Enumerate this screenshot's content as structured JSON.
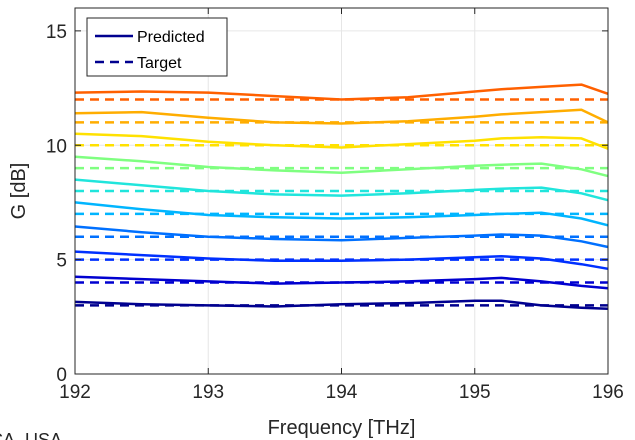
{
  "chart_data": {
    "type": "line",
    "xlabel": "Frequency  [THz]",
    "ylabel": "G  [dB]",
    "xlim": [
      192,
      196
    ],
    "ylim": [
      0,
      16
    ],
    "xticks": [
      192,
      193,
      194,
      195,
      196
    ],
    "yticks": [
      0,
      5,
      10,
      15
    ],
    "grid": true,
    "legend_position": "top-left",
    "legend": [
      {
        "label": "Predicted",
        "style": "solid"
      },
      {
        "label": "Target",
        "style": "dashed"
      }
    ],
    "x": [
      192,
      192.5,
      193,
      193.5,
      194,
      194.5,
      195,
      195.2,
      195.5,
      195.8,
      196
    ],
    "series": [
      {
        "target": 3,
        "predicted": [
          3.15,
          3.05,
          3.0,
          2.95,
          3.05,
          3.1,
          3.2,
          3.2,
          3.0,
          2.9,
          2.85
        ],
        "color": "#00008f"
      },
      {
        "target": 4,
        "predicted": [
          4.25,
          4.15,
          4.05,
          3.95,
          4.0,
          4.05,
          4.15,
          4.2,
          4.05,
          3.85,
          3.75
        ],
        "color": "#0000d0"
      },
      {
        "target": 5,
        "predicted": [
          5.35,
          5.2,
          5.05,
          4.95,
          4.95,
          5.0,
          5.1,
          5.15,
          5.05,
          4.8,
          4.6
        ],
        "color": "#0030ff"
      },
      {
        "target": 6,
        "predicted": [
          6.45,
          6.2,
          6.0,
          5.9,
          5.85,
          5.95,
          6.05,
          6.1,
          6.05,
          5.8,
          5.55
        ],
        "color": "#0070ff"
      },
      {
        "target": 7,
        "predicted": [
          7.5,
          7.2,
          6.95,
          6.85,
          6.8,
          6.85,
          6.95,
          7.0,
          7.05,
          6.8,
          6.5
        ],
        "color": "#00b5ff"
      },
      {
        "target": 8,
        "predicted": [
          8.5,
          8.25,
          8.0,
          7.85,
          7.8,
          7.9,
          8.05,
          8.1,
          8.15,
          7.9,
          7.6
        ],
        "color": "#20e5dc"
      },
      {
        "target": 9,
        "predicted": [
          9.5,
          9.3,
          9.05,
          8.9,
          8.8,
          8.95,
          9.1,
          9.15,
          9.2,
          8.95,
          8.65
        ],
        "color": "#7fff80"
      },
      {
        "target": 10,
        "predicted": [
          10.5,
          10.4,
          10.15,
          10.0,
          9.9,
          10.05,
          10.2,
          10.3,
          10.35,
          10.3,
          9.85
        ],
        "color": "#ffe100"
      },
      {
        "target": 11,
        "predicted": [
          11.4,
          11.45,
          11.2,
          11.0,
          10.95,
          11.05,
          11.25,
          11.35,
          11.45,
          11.55,
          11.0
        ],
        "color": "#ffad00"
      },
      {
        "target": 12,
        "predicted": [
          12.3,
          12.35,
          12.3,
          12.15,
          12.0,
          12.1,
          12.35,
          12.45,
          12.55,
          12.65,
          12.25
        ],
        "color": "#ff6000"
      }
    ]
  },
  "cropped_text": "CA, USA"
}
